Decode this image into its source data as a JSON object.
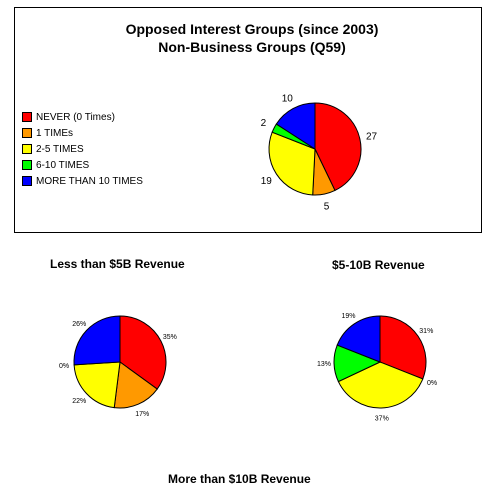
{
  "header": {
    "title_line1": "Opposed Interest Groups (since 2003)",
    "title_line2": "Non-Business Groups (Q59)"
  },
  "legend": {
    "items": [
      {
        "label": "NEVER (0 Times)",
        "color": "#ff0000"
      },
      {
        "label": "1  TIMEs",
        "color": "#ff9900"
      },
      {
        "label": "2-5 TIMES",
        "color": "#ffff00"
      },
      {
        "label": "6-10 TIMES",
        "color": "#00ff00"
      },
      {
        "label": "MORE THAN 10 TIMES",
        "color": "#0000ff"
      }
    ]
  },
  "subtitles": {
    "lt5": "Less than $5B Revenue",
    "mid": "$5-10B Revenue",
    "gt10": "More than $10B Revenue"
  },
  "chart_data": [
    {
      "type": "pie",
      "title": "Opposed Interest Groups (since 2003) Non-Business Groups (Q59)",
      "categories": [
        "NEVER (0 Times)",
        "1  TIMEs",
        "2-5 TIMES",
        "6-10 TIMES",
        "MORE THAN 10 TIMES"
      ],
      "values": [
        27,
        5,
        19,
        2,
        10
      ],
      "labels": [
        "27",
        "5",
        "19",
        "2",
        "10"
      ],
      "colors": [
        "#ff0000",
        "#ff9900",
        "#ffff00",
        "#00ff00",
        "#0000ff"
      ],
      "legend": "left"
    },
    {
      "type": "pie",
      "title": "Less than $5B Revenue",
      "categories": [
        "NEVER (0 Times)",
        "1  TIMEs",
        "2-5 TIMES",
        "6-10 TIMES",
        "MORE THAN 10 TIMES"
      ],
      "values": [
        35,
        17,
        22,
        0,
        26
      ],
      "labels": [
        "35%",
        "17%",
        "22%",
        "0%",
        "26%"
      ],
      "colors": [
        "#ff0000",
        "#ff9900",
        "#ffff00",
        "#00ff00",
        "#0000ff"
      ]
    },
    {
      "type": "pie",
      "title": "$5-10B Revenue",
      "categories": [
        "NEVER (0 Times)",
        "1  TIMEs",
        "2-5 TIMES",
        "6-10 TIMES",
        "MORE THAN 10 TIMES"
      ],
      "values": [
        31,
        0,
        37,
        13,
        19
      ],
      "labels": [
        "31%",
        "0%",
        "37%",
        "13%",
        "19%"
      ],
      "colors": [
        "#ff0000",
        "#ff9900",
        "#ffff00",
        "#00ff00",
        "#0000ff"
      ]
    }
  ]
}
